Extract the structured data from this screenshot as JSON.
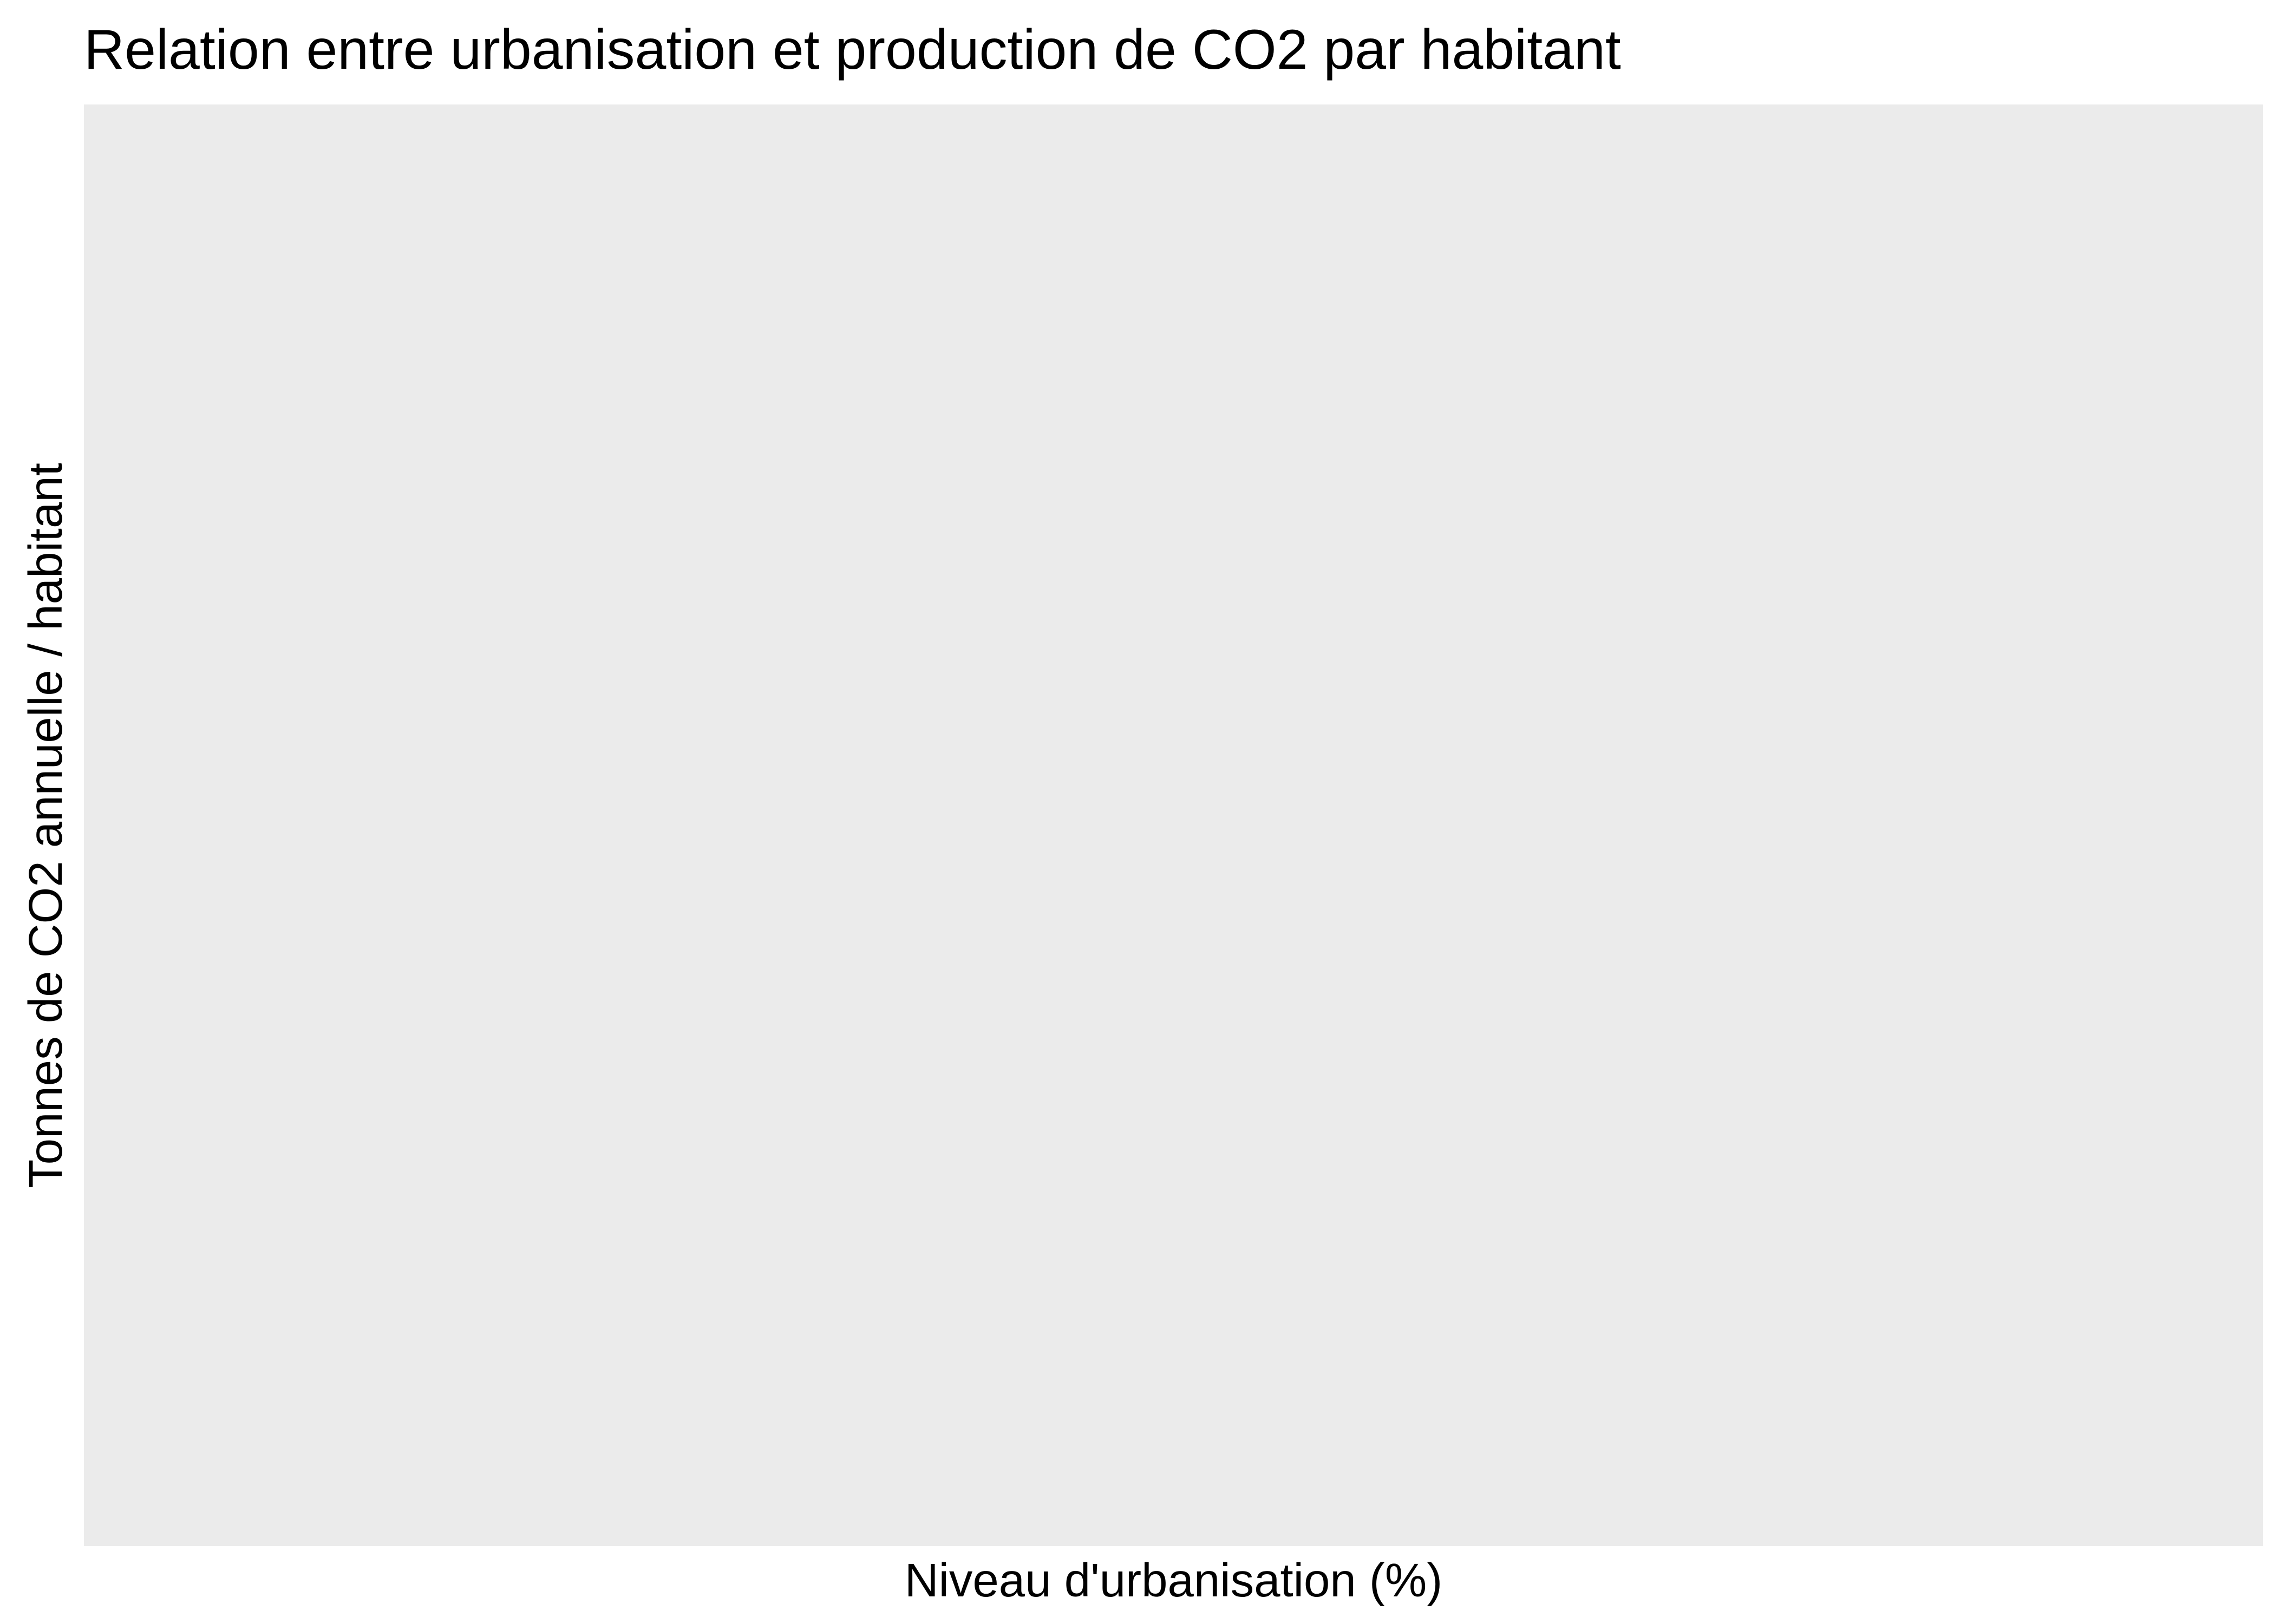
{
  "chart_data": {
    "type": "scatter",
    "title": "Relation entre urbanisation et production de CO2 par habitant",
    "xlabel": "Niveau d'urbanisation (%)",
    "ylabel": "Tonnes de CO2 annuelle / habitant",
    "points": [],
    "grid": false,
    "legend": "none",
    "panel_color": "#ebebeb"
  }
}
